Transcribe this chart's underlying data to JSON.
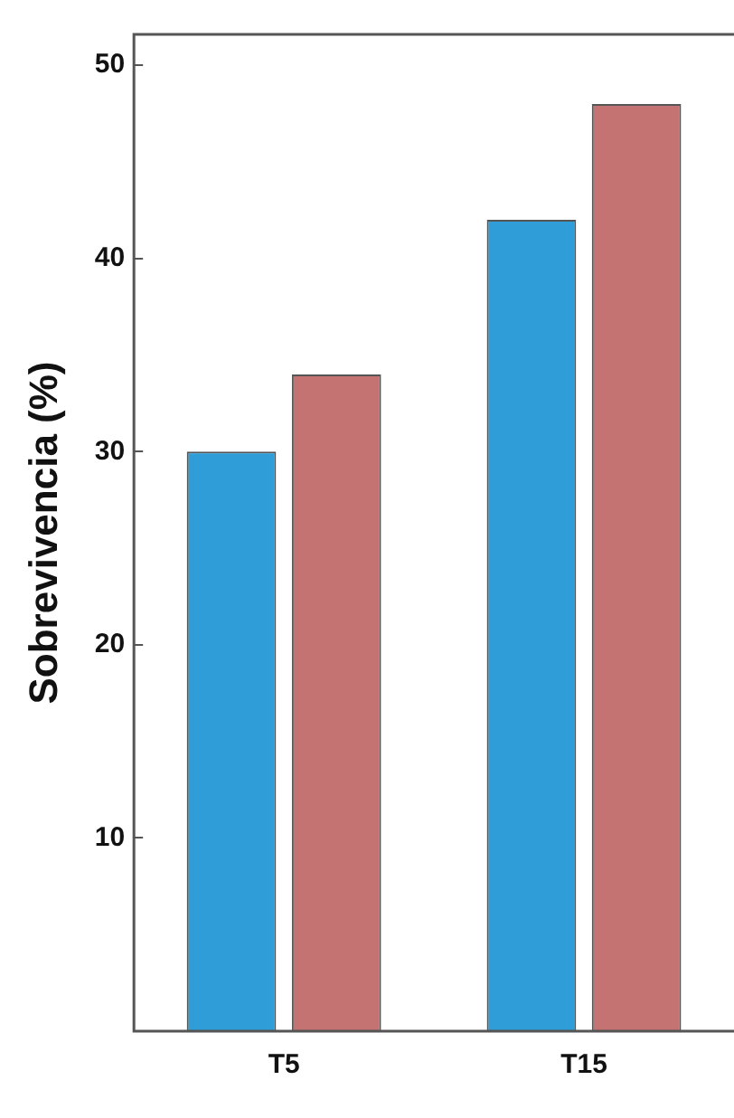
{
  "chart_data": {
    "type": "bar",
    "ylabel": "Sobrevivencia (%)",
    "categories": [
      "T5",
      "T15"
    ],
    "series": [
      {
        "color": "#2e9dd8",
        "values": [
          30,
          42
        ]
      },
      {
        "color": "#c47272",
        "values": [
          34,
          48
        ]
      }
    ],
    "ylim": [
      0,
      51.6
    ],
    "yticks": [
      10,
      20,
      30,
      40,
      50
    ],
    "grid": false,
    "legend": false
  }
}
